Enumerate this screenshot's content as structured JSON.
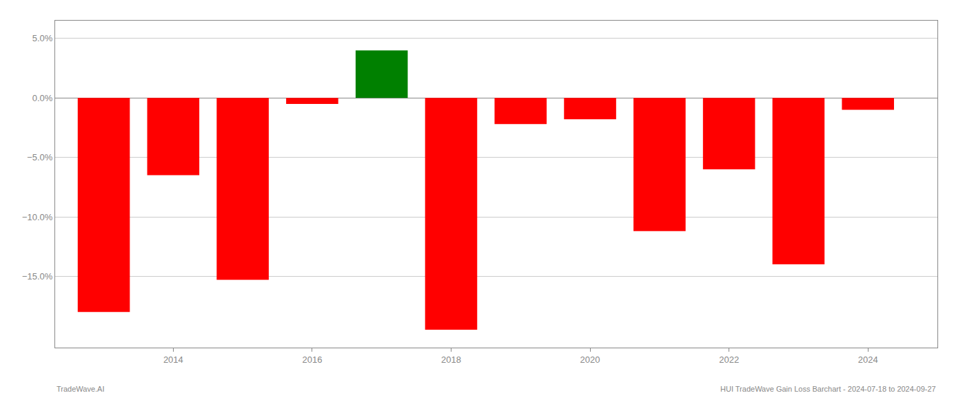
{
  "chart_data": {
    "type": "bar",
    "x": [
      2013,
      2014,
      2015,
      2016,
      2017,
      2018,
      2019,
      2020,
      2021,
      2022,
      2023,
      2024
    ],
    "values": [
      -18.0,
      -6.5,
      -15.3,
      -0.5,
      4.0,
      -19.5,
      -2.2,
      -1.8,
      -11.2,
      -6.0,
      -14.0,
      -1.0
    ],
    "colors": [
      "#ff0000",
      "#ff0000",
      "#ff0000",
      "#ff0000",
      "#008000",
      "#ff0000",
      "#ff0000",
      "#ff0000",
      "#ff0000",
      "#ff0000",
      "#ff0000",
      "#ff0000"
    ],
    "xlim": [
      2012.3,
      2025.0
    ],
    "xticks": [
      2014,
      2016,
      2018,
      2020,
      2022,
      2024
    ],
    "ylim": [
      -21,
      6.5
    ],
    "yticks": [
      {
        "value": 5.0,
        "label": "5.0%"
      },
      {
        "value": 0.0,
        "label": "0.0%"
      },
      {
        "value": -5.0,
        "label": "−5.0%"
      },
      {
        "value": -10.0,
        "label": "−10.0%"
      },
      {
        "value": -15.0,
        "label": "−15.0%"
      }
    ],
    "grid": true,
    "annotations": [
      "TradeWave.AI",
      "HUI TradeWave Gain Loss Barchart - 2024-07-18 to 2024-09-27"
    ]
  }
}
